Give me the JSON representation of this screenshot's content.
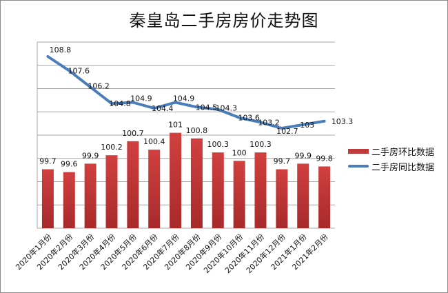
{
  "chart_data": {
    "type": "bar+line",
    "title": "秦皇岛二手房房价走势图",
    "categories": [
      "2020年1月份",
      "2020年2月份",
      "2020年3月份",
      "2020年4月份",
      "2020年5月份",
      "2020年6月份",
      "2020年7月份",
      "2020年8月份",
      "2020年9月份",
      "2020年10月份",
      "2020年11月份",
      "2020年12月份",
      "2021年1月份",
      "2021年2月份"
    ],
    "series": [
      {
        "name": "二手房环比数据",
        "type": "bar",
        "color": "#c0393b",
        "values": [
          99.7,
          99.6,
          99.9,
          100.2,
          100.7,
          100.4,
          101,
          100.8,
          100.3,
          100,
          100.3,
          99.7,
          99.9,
          99.8
        ]
      },
      {
        "name": "二手房同比数据",
        "type": "line",
        "color": "#4a7ebb",
        "values": [
          108.8,
          107.6,
          106.2,
          104.8,
          104.9,
          104.4,
          104.9,
          104.5,
          104.3,
          103.6,
          103.2,
          102.7,
          103,
          103.3
        ]
      }
    ],
    "xlabel": "",
    "ylabel": "",
    "grid": true,
    "legend_position": "right",
    "axis_labels_visible": false
  },
  "legend": {
    "items": [
      {
        "label": "二手房环比数据"
      },
      {
        "label": "二手房同比数据"
      }
    ]
  }
}
